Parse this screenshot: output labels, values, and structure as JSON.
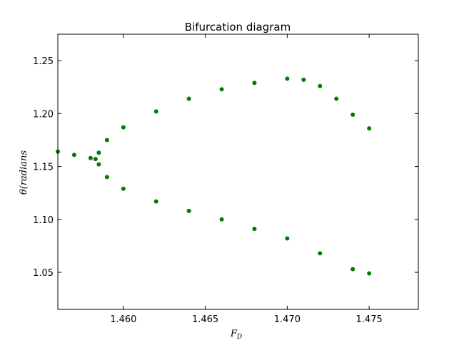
{
  "chart_data": {
    "type": "scatter",
    "title": "Bifurcation diagram",
    "xlabel": "F_D",
    "xlabel_main": "F",
    "xlabel_sub": "D",
    "ylabel": "θ(radians",
    "xlim": [
      1.456,
      1.478
    ],
    "ylim": [
      1.015,
      1.275
    ],
    "x_ticks": [
      1.46,
      1.465,
      1.47,
      1.475
    ],
    "x_tick_labels": [
      "1.460",
      "1.465",
      "1.470",
      "1.475"
    ],
    "y_ticks": [
      1.05,
      1.1,
      1.15,
      1.2,
      1.25
    ],
    "y_tick_labels": [
      "1.05",
      "1.10",
      "1.15",
      "1.20",
      "1.25"
    ],
    "grid": false,
    "point_color": "#007a00",
    "series": [
      {
        "values_description": "branch points (F_D, theta)",
        "points": [
          [
            1.456,
            1.164
          ],
          [
            1.457,
            1.161
          ],
          [
            1.458,
            1.158
          ],
          [
            1.4583,
            1.157
          ],
          [
            1.4585,
            1.163
          ],
          [
            1.459,
            1.175
          ],
          [
            1.46,
            1.187
          ],
          [
            1.462,
            1.202
          ],
          [
            1.464,
            1.214
          ],
          [
            1.466,
            1.223
          ],
          [
            1.468,
            1.229
          ],
          [
            1.47,
            1.233
          ],
          [
            1.471,
            1.232
          ],
          [
            1.472,
            1.226
          ],
          [
            1.473,
            1.214
          ],
          [
            1.474,
            1.199
          ],
          [
            1.475,
            1.186
          ],
          [
            1.4585,
            1.152
          ],
          [
            1.459,
            1.14
          ],
          [
            1.46,
            1.129
          ],
          [
            1.462,
            1.117
          ],
          [
            1.464,
            1.108
          ],
          [
            1.466,
            1.1
          ],
          [
            1.468,
            1.091
          ],
          [
            1.47,
            1.082
          ],
          [
            1.472,
            1.068
          ],
          [
            1.474,
            1.053
          ],
          [
            1.475,
            1.049
          ]
        ]
      }
    ]
  }
}
